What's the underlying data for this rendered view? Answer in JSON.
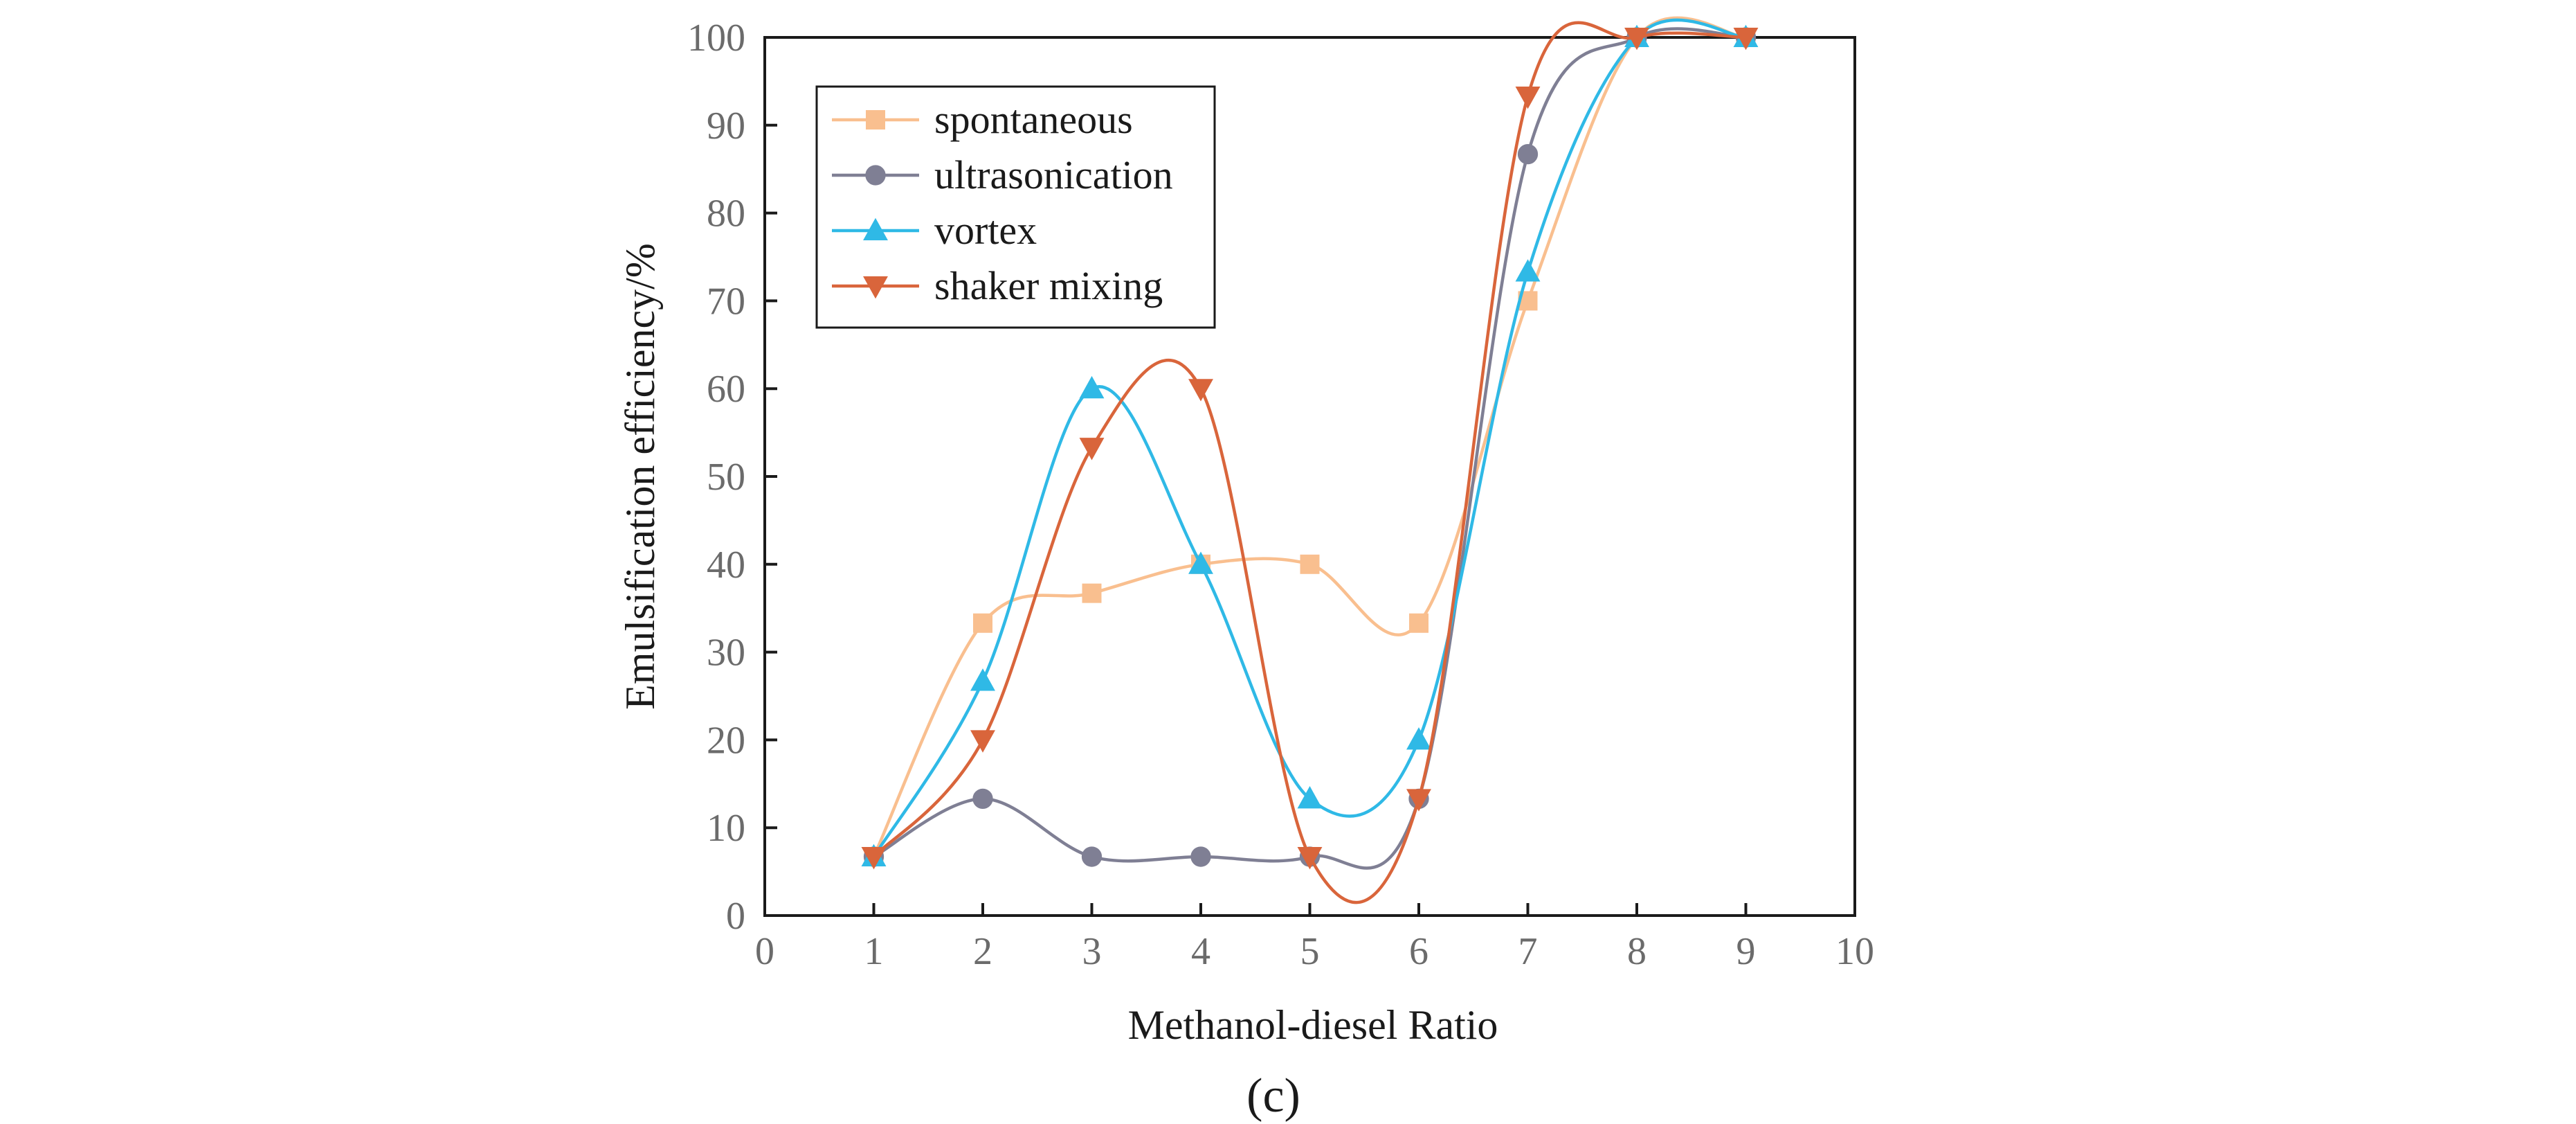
{
  "panel_label": "(c)",
  "chart_data": {
    "type": "line",
    "title": "",
    "xlabel": "Methanol-diesel Ratio",
    "ylabel": "Emulsification efficiency/%",
    "xlim": [
      0,
      10
    ],
    "ylim": [
      0,
      100
    ],
    "xticks": [
      "0",
      "1",
      "2",
      "3",
      "4",
      "5",
      "6",
      "7",
      "8",
      "9",
      "10"
    ],
    "yticks": [
      "0",
      "10",
      "20",
      "30",
      "40",
      "50",
      "60",
      "70",
      "80",
      "90",
      "100"
    ],
    "grid": false,
    "legend_position": "top-left",
    "smooth": true,
    "x": [
      1,
      2,
      3,
      4,
      5,
      6,
      7,
      8,
      9
    ],
    "series": [
      {
        "name": "spontaneous",
        "marker": "square",
        "color": "#f9bf8f",
        "values": [
          6.7,
          33.3,
          36.7,
          40.0,
          40.0,
          33.3,
          70.0,
          100,
          100
        ]
      },
      {
        "name": "ultrasonication",
        "marker": "circle",
        "color": "#7f7f94",
        "values": [
          6.7,
          13.3,
          6.7,
          6.7,
          6.7,
          13.3,
          86.7,
          100,
          100
        ]
      },
      {
        "name": "vortex",
        "marker": "triangle-up",
        "color": "#2fb9e6",
        "values": [
          6.7,
          26.7,
          60.0,
          40.0,
          13.3,
          20.0,
          73.3,
          100,
          100
        ]
      },
      {
        "name": "shaker mixing",
        "marker": "triangle-down",
        "color": "#d9653b",
        "values": [
          6.7,
          20.0,
          53.3,
          60.0,
          6.7,
          13.3,
          93.3,
          100,
          100
        ]
      }
    ]
  }
}
